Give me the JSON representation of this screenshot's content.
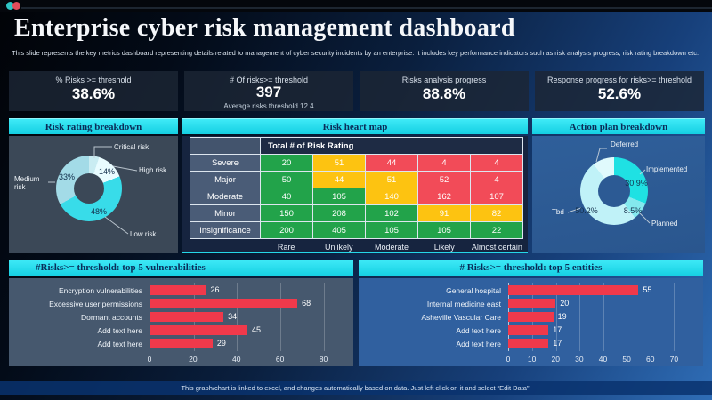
{
  "page": {
    "title": "Enterprise cyber risk management dashboard",
    "subtitle": "This slide represents the key metrics dashboard representing details related to management of cyber security incidents by an enterprise. It includes key performance indicators such as risk analysis progress, risk rating breakdown etc.",
    "footer_note": "This graph/chart is linked to excel, and changes automatically based on data. Just left click on it and select “Edit Data”."
  },
  "kpis": [
    {
      "label": "% Risks >= threshold",
      "value": "38.6%",
      "sub": ""
    },
    {
      "label": "# Of risks>= threshold",
      "value": "397",
      "sub": "Average risks threshold 12.4"
    },
    {
      "label": "Risks analysis progress",
      "value": "88.8%",
      "sub": ""
    },
    {
      "label": "Response progress for risks>= threshold",
      "value": "52.6%",
      "sub": ""
    }
  ],
  "section_titles": {
    "left": "Risk rating breakdown",
    "center": "Risk heart map",
    "right": "Action plan breakdown",
    "bottom_left": "#Risks>= threshold: top 5 vulnerabilities",
    "bottom_right": "# Risks>= threshold: top 5 entities"
  },
  "colors": {
    "accent_cyan": "#2ee4f2",
    "bar_red": "#f0394b",
    "heat_green": "#22a34a",
    "heat_yellow": "#fdc311",
    "heat_red": "#f24b58"
  },
  "chart_data": [
    {
      "type": "pie",
      "variant": "donut",
      "title": "Risk rating breakdown",
      "slices": [
        {
          "label": "Critical risk",
          "value": 5,
          "display": "",
          "color": "#c9ecf2"
        },
        {
          "label": "High risk",
          "value": 14,
          "display": "14%",
          "color": "#e9fcff"
        },
        {
          "label": "Low risk",
          "value": 48,
          "display": "48%",
          "color": "#38dce9"
        },
        {
          "label": "Medium risk",
          "value": 33,
          "display": "33%",
          "color": "#a3dbe7"
        }
      ]
    },
    {
      "type": "heatmap",
      "title": "Risk heart map",
      "main_header": "Total # of Risk Rating",
      "row_labels": [
        "Severe",
        "Major",
        "Moderate",
        "Minor",
        "Insignificance"
      ],
      "col_labels": [
        "Rare",
        "Unlikely",
        "Moderate",
        "Likely",
        "Almost certain"
      ],
      "values": [
        [
          20,
          51,
          44,
          4,
          4
        ],
        [
          50,
          44,
          51,
          52,
          4
        ],
        [
          40,
          105,
          140,
          162,
          107
        ],
        [
          150,
          208,
          102,
          91,
          82
        ],
        [
          200,
          405,
          105,
          105,
          22
        ]
      ],
      "cell_levels": [
        [
          "low",
          "med",
          "high",
          "high",
          "high"
        ],
        [
          "low",
          "med",
          "med",
          "high",
          "high"
        ],
        [
          "low",
          "low",
          "med",
          "high",
          "high"
        ],
        [
          "low",
          "low",
          "low",
          "med",
          "med"
        ],
        [
          "low",
          "low",
          "low",
          "low",
          "low"
        ]
      ],
      "level_colors": {
        "low": "#22a34a",
        "med": "#fdc311",
        "high": "#f24b58"
      }
    },
    {
      "type": "pie",
      "variant": "donut",
      "title": "Action plan breakdown",
      "slices": [
        {
          "label": "Implemented",
          "value": 30.9,
          "display": "30.9%",
          "color": "#1fe1e3"
        },
        {
          "label": "Planned",
          "value": 8.5,
          "display": "8.5%",
          "color": "#84e9ee"
        },
        {
          "label": "Tbd",
          "value": 50.2,
          "display": "50.2%",
          "color": "#c0f2f8"
        },
        {
          "label": "Deferred",
          "value": 10.4,
          "display": "",
          "color": "#e0fafc"
        }
      ]
    },
    {
      "type": "bar",
      "orientation": "horizontal",
      "title": "#Risks>= threshold: top 5 vulnerabilities",
      "categories": [
        "Encryption vulnerabilities",
        "Excessive user permissions",
        "Dormant accounts",
        "Add text here",
        "Add text here"
      ],
      "values": [
        26,
        68,
        34,
        45,
        29
      ],
      "xticks": [
        0,
        20,
        40,
        60,
        80
      ],
      "xlim": [
        0,
        88
      ],
      "bar_color": "#f0394b"
    },
    {
      "type": "bar",
      "orientation": "horizontal",
      "title": "# Risks>= threshold: top 5 entities",
      "categories": [
        "General hospital",
        "Internal medicine east",
        "Asheville Vascular Care",
        "Add text here",
        "Add text here"
      ],
      "values": [
        55,
        20,
        19,
        17,
        17
      ],
      "xticks": [
        0,
        10,
        20,
        30,
        40,
        50,
        60,
        70
      ],
      "xlim": [
        0,
        77
      ],
      "bar_color": "#f0394b"
    }
  ]
}
